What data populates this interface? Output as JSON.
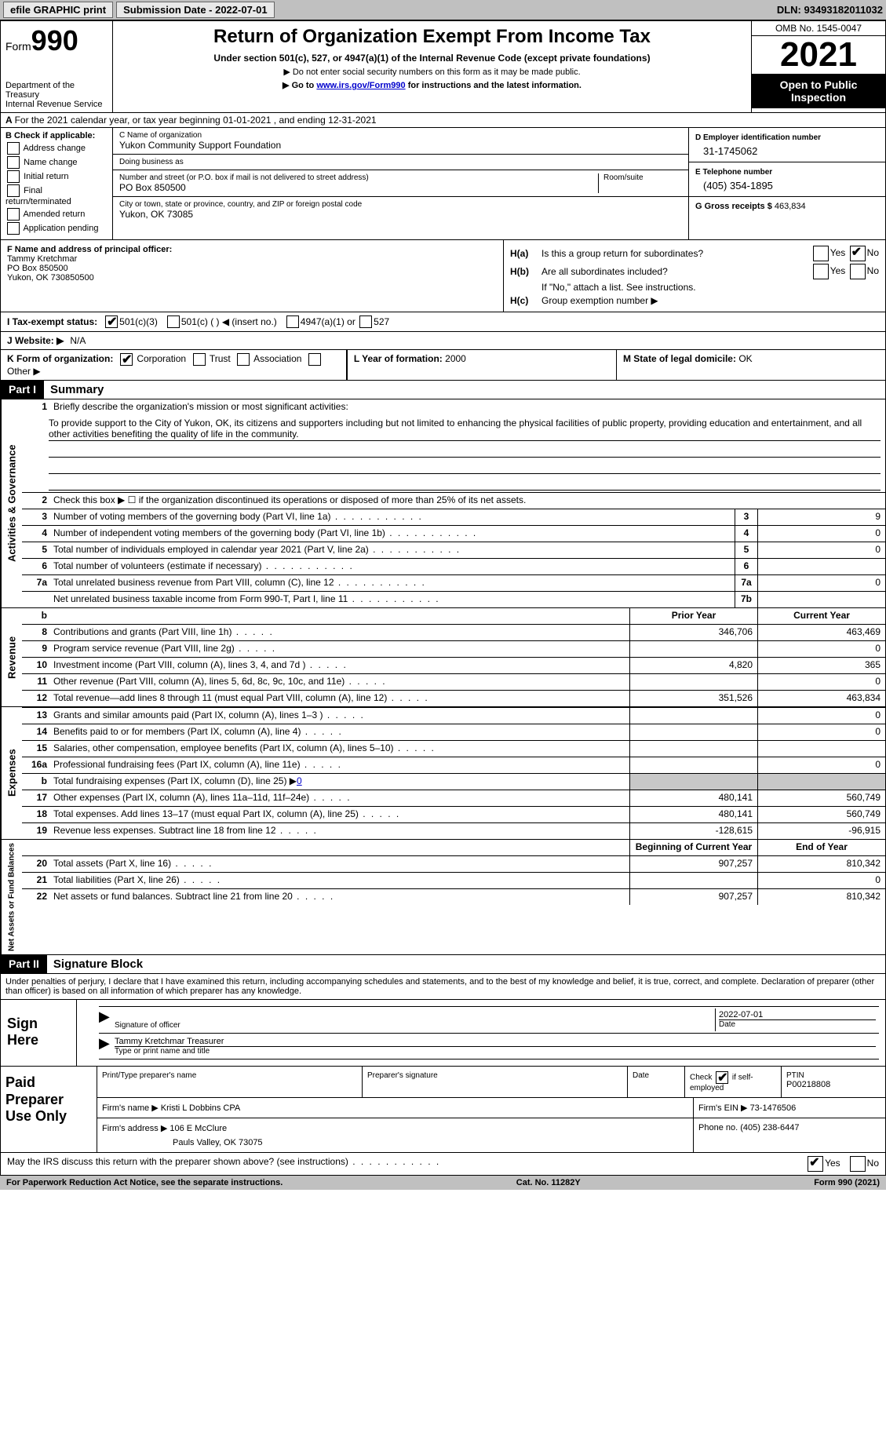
{
  "topbar": {
    "efile": "efile GRAPHIC print",
    "submission": "Submission Date - 2022-07-01",
    "dln": "DLN: 93493182011032"
  },
  "header": {
    "form_word": "Form",
    "form_num": "990",
    "dept": "Department of the Treasury\nInternal Revenue Service",
    "title": "Return of Organization Exempt From Income Tax",
    "sub": "Under section 501(c), 527, or 4947(a)(1) of the Internal Revenue Code (except private foundations)",
    "note1": "▶ Do not enter social security numbers on this form as it may be made public.",
    "note2_pre": "▶ Go to ",
    "note2_link": "www.irs.gov/Form990",
    "note2_post": " for instructions and the latest information.",
    "omb": "OMB No. 1545-0047",
    "year": "2021",
    "inspect": "Open to Public Inspection"
  },
  "a": "For the 2021 calendar year, or tax year beginning 01-01-2021   , and ending 12-31-2021",
  "b": {
    "label": "B Check if applicable:",
    "opts": [
      "Address change",
      "Name change",
      "Initial return",
      "Final return/terminated",
      "Amended return",
      "Application pending"
    ]
  },
  "c": {
    "name_lab": "C Name of organization",
    "name": "Yukon Community Support Foundation",
    "dba_lab": "Doing business as",
    "dba": "",
    "addr_lab": "Number and street (or P.O. box if mail is not delivered to street address)",
    "addr": "PO Box 850500",
    "room_lab": "Room/suite",
    "city_lab": "City or town, state or province, country, and ZIP or foreign postal code",
    "city": "Yukon, OK  73085"
  },
  "d": {
    "ein_lab": "D Employer identification number",
    "ein": "31-1745062",
    "tel_lab": "E Telephone number",
    "tel": "(405) 354-1895",
    "gross_lab": "G Gross receipts $",
    "gross": "463,834"
  },
  "f": {
    "lab": "F  Name and address of principal officer:",
    "name": "Tammy Kretchmar",
    "addr1": "PO Box 850500",
    "addr2": "Yukon, OK  730850500"
  },
  "h": {
    "a_lab": "H(a)",
    "a_text": "Is this a group return for subordinates?",
    "b_lab": "H(b)",
    "b_text": "Are all subordinates included?",
    "b_note": "If \"No,\" attach a list. See instructions.",
    "c_lab": "H(c)",
    "c_text": "Group exemption number ▶",
    "yes": "Yes",
    "no": "No"
  },
  "i": {
    "lab": "I  Tax-exempt status:",
    "opt1": "501(c)(3)",
    "opt2": "501(c) (  ) ◀ (insert no.)",
    "opt3": "4947(a)(1) or",
    "opt4": "527"
  },
  "j": {
    "lab": "J  Website: ▶",
    "val": "N/A"
  },
  "k": {
    "lab": "K Form of organization:",
    "opts": [
      "Corporation",
      "Trust",
      "Association",
      "Other ▶"
    ],
    "l_lab": "L Year of formation:",
    "l_val": "2000",
    "m_lab": "M State of legal domicile:",
    "m_val": "OK"
  },
  "part1": {
    "bar": "Part I",
    "title": "Summary"
  },
  "mission": {
    "num": "1",
    "lab": "Briefly describe the organization's mission or most significant activities:",
    "text": "To provide support to the City of Yukon, OK, its citizens and supporters including but not limited to enhancing the physical facilities of public property, providing education and entertainment, and all other activities benefiting the quality of life in the community."
  },
  "governance": {
    "label": "Activities & Governance",
    "l2": "Check this box ▶ ☐  if the organization discontinued its operations or disposed of more than 25% of its net assets.",
    "rows": [
      {
        "n": "3",
        "t": "Number of voting members of the governing body (Part VI, line 1a)",
        "box": "3",
        "v": "9"
      },
      {
        "n": "4",
        "t": "Number of independent voting members of the governing body (Part VI, line 1b)",
        "box": "4",
        "v": "0"
      },
      {
        "n": "5",
        "t": "Total number of individuals employed in calendar year 2021 (Part V, line 2a)",
        "box": "5",
        "v": "0"
      },
      {
        "n": "6",
        "t": "Total number of volunteers (estimate if necessary)",
        "box": "6",
        "v": ""
      },
      {
        "n": "7a",
        "t": "Total unrelated business revenue from Part VIII, column (C), line 12",
        "box": "7a",
        "v": "0"
      },
      {
        "n": "",
        "t": "Net unrelated business taxable income from Form 990-T, Part I, line 11",
        "box": "7b",
        "v": ""
      }
    ]
  },
  "revenue": {
    "label": "Revenue",
    "hdr_b": "b",
    "hdr_prior": "Prior Year",
    "hdr_curr": "Current Year",
    "rows": [
      {
        "n": "8",
        "t": "Contributions and grants (Part VIII, line 1h)",
        "p": "346,706",
        "c": "463,469"
      },
      {
        "n": "9",
        "t": "Program service revenue (Part VIII, line 2g)",
        "p": "",
        "c": "0"
      },
      {
        "n": "10",
        "t": "Investment income (Part VIII, column (A), lines 3, 4, and 7d )",
        "p": "4,820",
        "c": "365"
      },
      {
        "n": "11",
        "t": "Other revenue (Part VIII, column (A), lines 5, 6d, 8c, 9c, 10c, and 11e)",
        "p": "",
        "c": "0"
      },
      {
        "n": "12",
        "t": "Total revenue—add lines 8 through 11 (must equal Part VIII, column (A), line 12)",
        "p": "351,526",
        "c": "463,834"
      }
    ]
  },
  "expenses": {
    "label": "Expenses",
    "rows": [
      {
        "n": "13",
        "t": "Grants and similar amounts paid (Part IX, column (A), lines 1–3 )",
        "p": "",
        "c": "0"
      },
      {
        "n": "14",
        "t": "Benefits paid to or for members (Part IX, column (A), line 4)",
        "p": "",
        "c": "0"
      },
      {
        "n": "15",
        "t": "Salaries, other compensation, employee benefits (Part IX, column (A), lines 5–10)",
        "p": "",
        "c": ""
      },
      {
        "n": "16a",
        "t": "Professional fundraising fees (Part IX, column (A), line 11e)",
        "p": "",
        "c": "0"
      }
    ],
    "b_line": {
      "n": "b",
      "t": "Total fundraising expenses (Part IX, column (D), line 25) ▶",
      "v": "0"
    },
    "rows2": [
      {
        "n": "17",
        "t": "Other expenses (Part IX, column (A), lines 11a–11d, 11f–24e)",
        "p": "480,141",
        "c": "560,749"
      },
      {
        "n": "18",
        "t": "Total expenses. Add lines 13–17 (must equal Part IX, column (A), line 25)",
        "p": "480,141",
        "c": "560,749"
      },
      {
        "n": "19",
        "t": "Revenue less expenses. Subtract line 18 from line 12",
        "p": "-128,615",
        "c": "-96,915"
      }
    ]
  },
  "netassets": {
    "label": "Net Assets or Fund Balances",
    "hdr_prior": "Beginning of Current Year",
    "hdr_curr": "End of Year",
    "rows": [
      {
        "n": "20",
        "t": "Total assets (Part X, line 16)",
        "p": "907,257",
        "c": "810,342"
      },
      {
        "n": "21",
        "t": "Total liabilities (Part X, line 26)",
        "p": "",
        "c": "0"
      },
      {
        "n": "22",
        "t": "Net assets or fund balances. Subtract line 21 from line 20",
        "p": "907,257",
        "c": "810,342"
      }
    ]
  },
  "part2": {
    "bar": "Part II",
    "title": "Signature Block"
  },
  "penalties": "Under penalties of perjury, I declare that I have examined this return, including accompanying schedules and statements, and to the best of my knowledge and belief, it is true, correct, and complete. Declaration of preparer (other than officer) is based on all information of which preparer has any knowledge.",
  "sign": {
    "here": "Sign Here",
    "sig_lab": "Signature of officer",
    "date_val": "2022-07-01",
    "date_lab": "Date",
    "name": "Tammy Kretchmar  Treasurer",
    "name_lab": "Type or print name and title"
  },
  "prep": {
    "label": "Paid Preparer Use Only",
    "h1": "Print/Type preparer's name",
    "h2": "Preparer's signature",
    "h3": "Date",
    "h4_pre": "Check",
    "h4_post": "if self-employed",
    "h5": "PTIN",
    "ptin": "P00218808",
    "firm_lab": "Firm's name    ▶",
    "firm": "Kristi L Dobbins CPA",
    "ein_lab": "Firm's EIN ▶",
    "ein": "73-1476506",
    "addr_lab": "Firm's address ▶",
    "addr1": "106 E McClure",
    "addr2": "Pauls Valley, OK  73075",
    "phone_lab": "Phone no.",
    "phone": "(405) 238-6447"
  },
  "discuss": {
    "text": "May the IRS discuss this return with the preparer shown above? (see instructions)",
    "yes": "Yes",
    "no": "No"
  },
  "footer": {
    "left": "For Paperwork Reduction Act Notice, see the separate instructions.",
    "mid": "Cat. No. 11282Y",
    "right": "Form 990 (2021)"
  }
}
